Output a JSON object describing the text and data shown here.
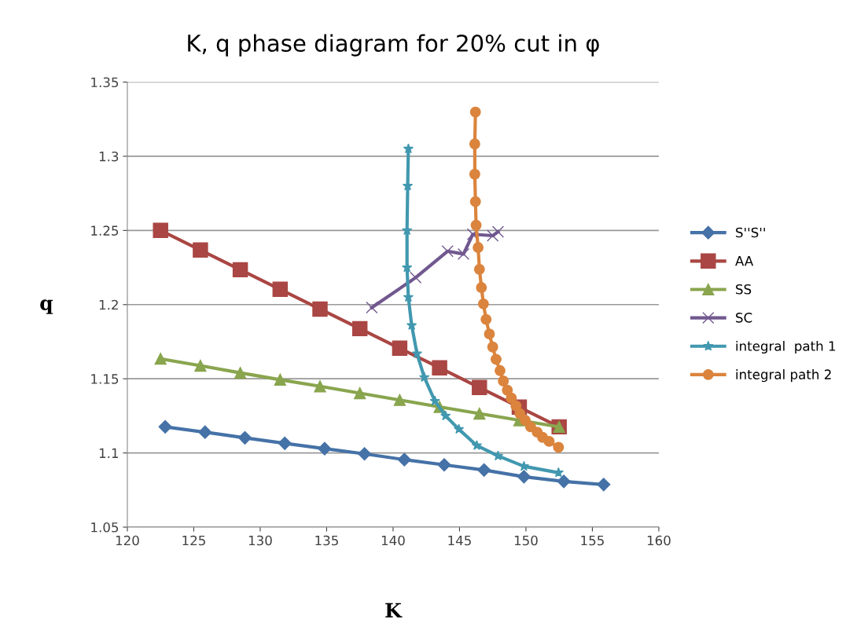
{
  "chart_data": {
    "type": "line",
    "title": "K, q phase diagram for 20% cut in φ",
    "xlabel": "K",
    "ylabel": "q",
    "xlim": [
      120,
      160
    ],
    "xticks": [
      120,
      125,
      130,
      135,
      140,
      145,
      150,
      155,
      160
    ],
    "ylim": [
      1.05,
      1.35
    ],
    "yticks": [
      1.05,
      1.1,
      1.15,
      1.2,
      1.25,
      1.3,
      1.35
    ],
    "grid": "y",
    "legend": "right",
    "series": [
      {
        "name": "S''S''",
        "color": "#4572a7",
        "marker": "diamond",
        "x": [
          122.85,
          125.85,
          128.85,
          131.85,
          134.85,
          137.85,
          140.85,
          143.85,
          146.85,
          149.85,
          152.85,
          155.85
        ],
        "values": [
          1.1176,
          1.114,
          1.1102,
          1.1065,
          1.1029,
          1.0994,
          1.0955,
          1.092,
          1.0885,
          1.084,
          1.0808,
          1.0787
        ]
      },
      {
        "name": "AA",
        "color": "#aa4643",
        "marker": "square",
        "x": [
          122.5,
          125.5,
          128.5,
          131.5,
          134.5,
          137.5,
          140.5,
          143.5,
          146.5,
          149.5,
          152.5
        ],
        "values": [
          1.25,
          1.2368,
          1.2235,
          1.2103,
          1.197,
          1.1838,
          1.1706,
          1.1574,
          1.1441,
          1.1309,
          1.1176
        ]
      },
      {
        "name": "SS",
        "color": "#89a54e",
        "marker": "triangle",
        "x": [
          122.5,
          125.5,
          128.5,
          131.5,
          134.5,
          137.5,
          140.5,
          143.5,
          146.5,
          149.5,
          152.5
        ],
        "values": [
          1.1635,
          1.1588,
          1.154,
          1.1494,
          1.1449,
          1.1403,
          1.1357,
          1.131,
          1.1265,
          1.122,
          1.1176
        ]
      },
      {
        "name": "SC",
        "color": "#71588f",
        "marker": "cross",
        "x": [
          138.4,
          141.7,
          144.1,
          145.3,
          146.0,
          147.5,
          147.9
        ],
        "values": [
          1.198,
          1.2182,
          1.236,
          1.2341,
          1.2474,
          1.2465,
          1.2491
        ]
      },
      {
        "name": "integral  path 1",
        "color": "#4198af",
        "marker": "star",
        "x": [
          141.15,
          141.1,
          141.05,
          141.05,
          141.15,
          141.4,
          141.8,
          142.35,
          143.15,
          143.95,
          144.95,
          146.3,
          147.9,
          149.85,
          152.45
        ],
        "values": [
          1.305,
          1.28,
          1.25,
          1.225,
          1.205,
          1.186,
          1.167,
          1.151,
          1.135,
          1.125,
          1.116,
          1.105,
          1.098,
          1.091,
          1.0867
        ]
      },
      {
        "name": "integral path 2",
        "color": "#db843d",
        "marker": "circle",
        "x": [
          146.2,
          146.15,
          146.15,
          146.2,
          146.25,
          146.4,
          146.5,
          146.65,
          146.8,
          147.0,
          147.25,
          147.5,
          147.75,
          148.05,
          148.3,
          148.6,
          148.9,
          149.25,
          149.55,
          149.95,
          150.35,
          150.85,
          151.25,
          151.75,
          152.45
        ],
        "values": [
          1.3298,
          1.3083,
          1.2879,
          1.2694,
          1.2535,
          1.2385,
          1.2238,
          1.2115,
          1.2005,
          1.19,
          1.1802,
          1.1714,
          1.1631,
          1.1555,
          1.1485,
          1.1423,
          1.137,
          1.1317,
          1.1264,
          1.122,
          1.1176,
          1.114,
          1.1105,
          1.1078,
          1.1038
        ]
      }
    ]
  }
}
